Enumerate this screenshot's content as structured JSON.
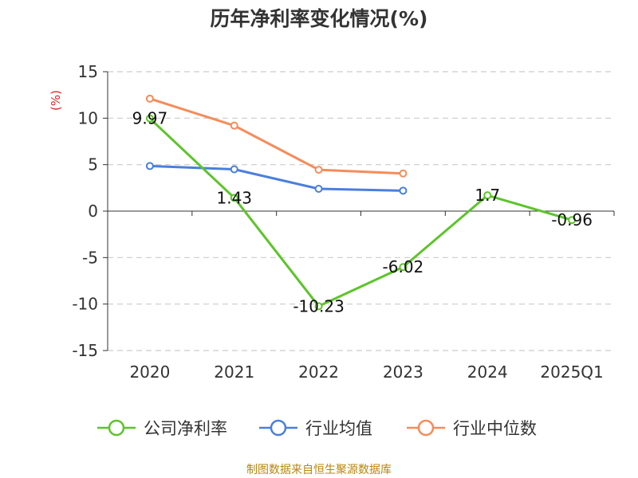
{
  "chart_data": {
    "type": "line",
    "title": "历年净利率变化情况(%)",
    "unit_label": "(%)",
    "categories": [
      "2020",
      "2021",
      "2022",
      "2023",
      "2024",
      "2025Q1"
    ],
    "ylim": [
      -15,
      15
    ],
    "yticks": [
      15,
      10,
      5,
      0,
      -5,
      -10,
      -15
    ],
    "grid": true,
    "legend_position": "bottom",
    "series": [
      {
        "name": "公司净利率",
        "color": "#5dc42a",
        "values": [
          9.97,
          1.43,
          -10.23,
          -6.02,
          1.7,
          -0.96
        ],
        "labels": [
          "9.97",
          "1.43",
          "-10.23",
          "-6.02",
          "1.7",
          "-0.96"
        ]
      },
      {
        "name": "行业均值",
        "color": "#4a7fdc",
        "values": [
          4.85,
          4.5,
          2.4,
          2.2,
          null,
          null
        ]
      },
      {
        "name": "行业中位数",
        "color": "#f58c5a",
        "values": [
          12.1,
          9.2,
          4.45,
          4.05,
          null,
          null
        ]
      }
    ]
  },
  "footer": "制图数据来自恒生聚源数据库"
}
